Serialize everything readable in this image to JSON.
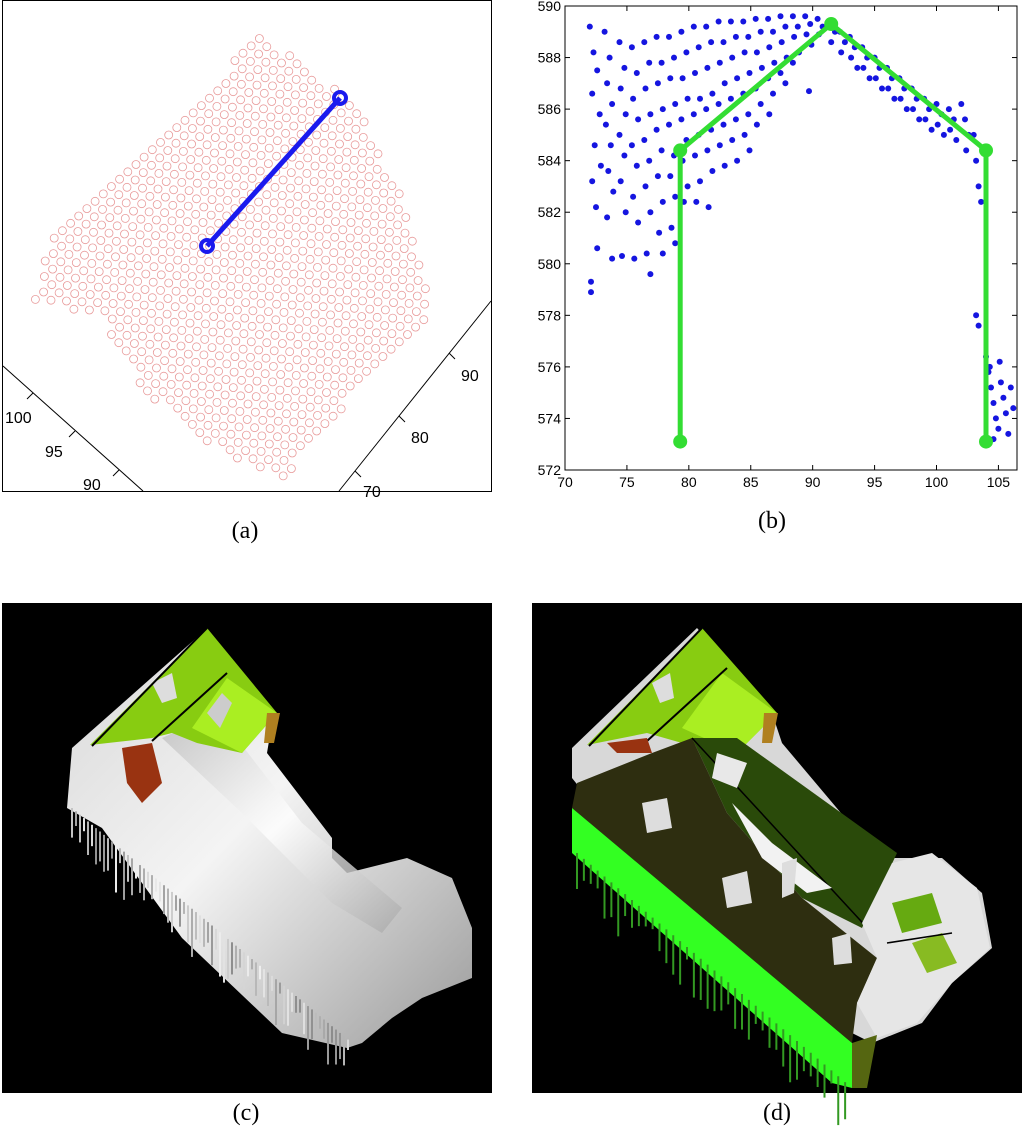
{
  "captions": {
    "a": "(a)",
    "b": "(b)",
    "c": "(c)",
    "d": "(d)"
  },
  "colors": {
    "points_a": "#e89a9a",
    "line_a": "#1a1aee",
    "points_b": "#1515e0",
    "profile_b": "#33dd33",
    "roof_light_green": "#99dd22",
    "roof_dark_green": "#2a4a0a",
    "roof_olive": "#2e2e10",
    "wall_green": "#33ff22",
    "rust": "#993311",
    "background": "#000000"
  },
  "panel_a": {
    "axis_left_ticks": [
      "100",
      "95",
      "90"
    ],
    "axis_right_ticks": [
      "90",
      "80",
      "70"
    ]
  },
  "chart_data": {
    "type": "scatter",
    "x_ticks": [
      70,
      75,
      80,
      85,
      90,
      95,
      100,
      105
    ],
    "y_ticks": [
      572,
      574,
      576,
      578,
      580,
      582,
      584,
      586,
      588,
      590
    ],
    "xlim": [
      70,
      106.5
    ],
    "ylim": [
      572,
      590
    ],
    "series": [
      {
        "points": [
          [
            72.0,
            589.2
          ],
          [
            72.3,
            588.2
          ],
          [
            72.6,
            587.5
          ],
          [
            72.2,
            586.6
          ],
          [
            72.8,
            585.8
          ],
          [
            72.4,
            584.6
          ],
          [
            72.9,
            583.8
          ],
          [
            72.2,
            583.2
          ],
          [
            72.5,
            582.2
          ],
          [
            72.6,
            580.6
          ],
          [
            72.1,
            579.3
          ],
          [
            72.1,
            578.9
          ],
          [
            73.2,
            589.0
          ],
          [
            73.6,
            588.0
          ],
          [
            73.4,
            587.0
          ],
          [
            73.8,
            586.2
          ],
          [
            73.3,
            585.4
          ],
          [
            73.7,
            584.6
          ],
          [
            73.5,
            583.6
          ],
          [
            73.9,
            582.8
          ],
          [
            73.4,
            581.8
          ],
          [
            73.8,
            580.2
          ],
          [
            74.4,
            588.6
          ],
          [
            74.8,
            587.6
          ],
          [
            74.5,
            586.8
          ],
          [
            74.9,
            585.8
          ],
          [
            74.4,
            585.0
          ],
          [
            74.8,
            584.2
          ],
          [
            74.5,
            583.2
          ],
          [
            74.9,
            582.0
          ],
          [
            74.6,
            580.3
          ],
          [
            75.4,
            588.4
          ],
          [
            75.8,
            587.4
          ],
          [
            75.5,
            586.4
          ],
          [
            75.9,
            585.6
          ],
          [
            75.4,
            584.6
          ],
          [
            75.8,
            583.8
          ],
          [
            75.5,
            582.6
          ],
          [
            75.9,
            581.6
          ],
          [
            75.6,
            580.2
          ],
          [
            76.4,
            588.6
          ],
          [
            76.8,
            587.8
          ],
          [
            76.5,
            586.8
          ],
          [
            76.9,
            585.8
          ],
          [
            76.4,
            584.8
          ],
          [
            76.8,
            584.0
          ],
          [
            76.5,
            583.0
          ],
          [
            76.9,
            582.0
          ],
          [
            76.6,
            580.4
          ],
          [
            76.9,
            579.6
          ],
          [
            77.4,
            588.8
          ],
          [
            77.8,
            587.8
          ],
          [
            77.5,
            587.0
          ],
          [
            77.9,
            586.0
          ],
          [
            77.4,
            585.2
          ],
          [
            77.8,
            584.4
          ],
          [
            77.5,
            583.4
          ],
          [
            77.9,
            582.4
          ],
          [
            77.6,
            581.2
          ],
          [
            77.9,
            580.4
          ],
          [
            78.4,
            588.8
          ],
          [
            78.8,
            588.0
          ],
          [
            78.5,
            587.2
          ],
          [
            78.9,
            586.2
          ],
          [
            78.4,
            585.4
          ],
          [
            78.8,
            584.2
          ],
          [
            78.5,
            583.4
          ],
          [
            78.9,
            582.6
          ],
          [
            78.6,
            581.4
          ],
          [
            78.9,
            580.8
          ],
          [
            79.4,
            589.0
          ],
          [
            79.8,
            588.2
          ],
          [
            79.5,
            587.2
          ],
          [
            79.9,
            586.4
          ],
          [
            79.4,
            585.6
          ],
          [
            79.8,
            584.8
          ],
          [
            79.5,
            584.0
          ],
          [
            79.9,
            583.0
          ],
          [
            79.6,
            582.4
          ],
          [
            80.4,
            589.2
          ],
          [
            80.8,
            588.4
          ],
          [
            80.5,
            587.4
          ],
          [
            80.9,
            586.4
          ],
          [
            80.4,
            585.8
          ],
          [
            80.8,
            585.0
          ],
          [
            80.5,
            584.2
          ],
          [
            80.9,
            583.2
          ],
          [
            80.6,
            582.4
          ],
          [
            81.4,
            589.2
          ],
          [
            81.8,
            588.6
          ],
          [
            81.5,
            587.6
          ],
          [
            81.9,
            586.6
          ],
          [
            81.4,
            586.0
          ],
          [
            81.8,
            585.2
          ],
          [
            81.5,
            584.4
          ],
          [
            81.9,
            583.6
          ],
          [
            81.6,
            582.2
          ],
          [
            82.4,
            589.4
          ],
          [
            82.8,
            588.6
          ],
          [
            82.5,
            587.8
          ],
          [
            82.9,
            587.0
          ],
          [
            82.4,
            586.2
          ],
          [
            82.8,
            585.4
          ],
          [
            82.5,
            584.6
          ],
          [
            82.9,
            583.8
          ],
          [
            83.4,
            589.4
          ],
          [
            83.8,
            588.8
          ],
          [
            83.5,
            588.0
          ],
          [
            83.9,
            587.2
          ],
          [
            83.4,
            586.4
          ],
          [
            83.8,
            585.6
          ],
          [
            83.5,
            584.8
          ],
          [
            83.9,
            584.0
          ],
          [
            84.4,
            589.4
          ],
          [
            84.8,
            588.8
          ],
          [
            84.5,
            588.2
          ],
          [
            84.9,
            587.4
          ],
          [
            84.4,
            586.6
          ],
          [
            84.8,
            585.8
          ],
          [
            84.5,
            585.0
          ],
          [
            84.9,
            584.4
          ],
          [
            85.4,
            589.5
          ],
          [
            85.8,
            589.0
          ],
          [
            85.5,
            588.2
          ],
          [
            85.9,
            587.6
          ],
          [
            85.4,
            586.8
          ],
          [
            85.8,
            586.2
          ],
          [
            85.5,
            585.4
          ],
          [
            86.4,
            589.5
          ],
          [
            86.8,
            589.0
          ],
          [
            86.5,
            588.4
          ],
          [
            86.9,
            587.8
          ],
          [
            86.4,
            587.2
          ],
          [
            86.8,
            586.6
          ],
          [
            86.5,
            585.8
          ],
          [
            87.4,
            589.6
          ],
          [
            87.8,
            589.2
          ],
          [
            87.5,
            588.6
          ],
          [
            87.9,
            588.0
          ],
          [
            87.4,
            587.4
          ],
          [
            87.8,
            587.0
          ],
          [
            88.4,
            589.6
          ],
          [
            88.8,
            589.2
          ],
          [
            88.5,
            588.8
          ],
          [
            88.9,
            588.2
          ],
          [
            88.4,
            587.8
          ],
          [
            89.7,
            586.7
          ],
          [
            89.4,
            589.6
          ],
          [
            89.8,
            589.3
          ],
          [
            89.5,
            588.9
          ],
          [
            89.9,
            588.5
          ],
          [
            90.4,
            589.5
          ],
          [
            90.8,
            589.2
          ],
          [
            90.5,
            588.9
          ],
          [
            91.4,
            589.4
          ],
          [
            91.8,
            589.0
          ],
          [
            91.5,
            588.6
          ],
          [
            92.2,
            589.0
          ],
          [
            92.6,
            588.6
          ],
          [
            92.3,
            588.2
          ],
          [
            93.0,
            588.8
          ],
          [
            93.4,
            588.4
          ],
          [
            93.1,
            588.0
          ],
          [
            93.6,
            587.6
          ],
          [
            94.0,
            588.4
          ],
          [
            94.4,
            588.0
          ],
          [
            94.1,
            587.6
          ],
          [
            94.6,
            587.2
          ],
          [
            95.0,
            588.0
          ],
          [
            95.4,
            587.6
          ],
          [
            95.1,
            587.2
          ],
          [
            95.6,
            586.8
          ],
          [
            96.0,
            587.6
          ],
          [
            96.4,
            587.2
          ],
          [
            96.1,
            586.8
          ],
          [
            96.6,
            586.4
          ],
          [
            97.0,
            587.2
          ],
          [
            97.4,
            586.8
          ],
          [
            97.1,
            586.4
          ],
          [
            97.6,
            586.0
          ],
          [
            98.0,
            586.8
          ],
          [
            98.4,
            586.4
          ],
          [
            98.1,
            586.0
          ],
          [
            98.6,
            585.6
          ],
          [
            99.0,
            586.4
          ],
          [
            99.4,
            586.0
          ],
          [
            99.1,
            585.6
          ],
          [
            99.6,
            585.2
          ],
          [
            100.0,
            586.2
          ],
          [
            100.4,
            585.8
          ],
          [
            100.1,
            585.4
          ],
          [
            100.6,
            585.0
          ],
          [
            101.0,
            586.0
          ],
          [
            101.4,
            585.6
          ],
          [
            101.1,
            585.2
          ],
          [
            101.6,
            584.8
          ],
          [
            102.0,
            586.2
          ],
          [
            102.3,
            585.6
          ],
          [
            102.6,
            585.0
          ],
          [
            102.4,
            584.4
          ],
          [
            103.0,
            585.0
          ],
          [
            103.2,
            584.0
          ],
          [
            103.4,
            583.0
          ],
          [
            103.6,
            582.4
          ],
          [
            103.2,
            578.0
          ],
          [
            103.4,
            577.6
          ],
          [
            104.0,
            576.4
          ],
          [
            104.2,
            575.8
          ],
          [
            104.4,
            575.2
          ],
          [
            104.6,
            574.6
          ],
          [
            104.3,
            576.0
          ],
          [
            104.8,
            574.0
          ],
          [
            105.0,
            573.6
          ],
          [
            105.2,
            575.4
          ],
          [
            105.4,
            574.8
          ],
          [
            105.6,
            574.2
          ],
          [
            105.8,
            573.4
          ],
          [
            106.0,
            575.2
          ],
          [
            106.2,
            574.4
          ],
          [
            105.1,
            576.2
          ],
          [
            104.6,
            573.2
          ]
        ]
      }
    ],
    "profile": [
      [
        79.3,
        573.1
      ],
      [
        79.3,
        584.4
      ],
      [
        91.5,
        589.3
      ],
      [
        104.0,
        584.4
      ],
      [
        104.0,
        573.1
      ]
    ]
  }
}
